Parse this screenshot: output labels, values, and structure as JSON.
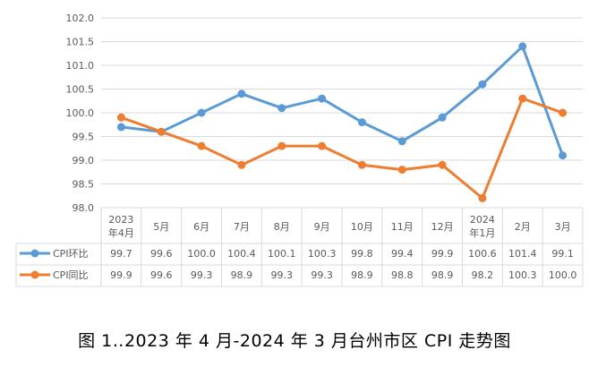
{
  "caption": "图 1‥2023 年 4 月-2024 年 3 月台州市区 CPI 走势图",
  "chart_data": {
    "type": "line",
    "title": "",
    "xlabel": "",
    "ylabel": "",
    "ylim": [
      98.0,
      102.0
    ],
    "yticks": [
      "98.0",
      "98.5",
      "99.0",
      "99.5",
      "100.0",
      "100.5",
      "101.0",
      "101.5",
      "102.0"
    ],
    "categories": [
      [
        "2023",
        "年4月"
      ],
      [
        "5月"
      ],
      [
        "6月"
      ],
      [
        "7月"
      ],
      [
        "8月"
      ],
      [
        "9月"
      ],
      [
        "10月"
      ],
      [
        "11月"
      ],
      [
        "12月"
      ],
      [
        "2024",
        "年1月"
      ],
      [
        "2月"
      ],
      [
        "3月"
      ]
    ],
    "series": [
      {
        "name": "CPI环比",
        "color": "#5B9BD5",
        "values": [
          99.7,
          99.6,
          100.0,
          100.4,
          100.1,
          100.3,
          99.8,
          99.4,
          99.9,
          100.6,
          101.4,
          99.1
        ],
        "labels": [
          "99.7",
          "99.6",
          "100.0",
          "100.4",
          "100.1",
          "100.3",
          "99.8",
          "99.4",
          "99.9",
          "100.6",
          "101.4",
          "99.1"
        ]
      },
      {
        "name": "CPI同比",
        "color": "#ED7D31",
        "values": [
          99.9,
          99.6,
          99.3,
          98.9,
          99.3,
          99.3,
          98.9,
          98.8,
          98.9,
          98.2,
          100.3,
          100.0
        ],
        "labels": [
          "99.9",
          "99.6",
          "99.3",
          "98.9",
          "99.3",
          "99.3",
          "98.9",
          "98.8",
          "98.9",
          "98.2",
          "100.3",
          "100.0"
        ]
      }
    ],
    "grid": true,
    "legend": "table-left"
  }
}
